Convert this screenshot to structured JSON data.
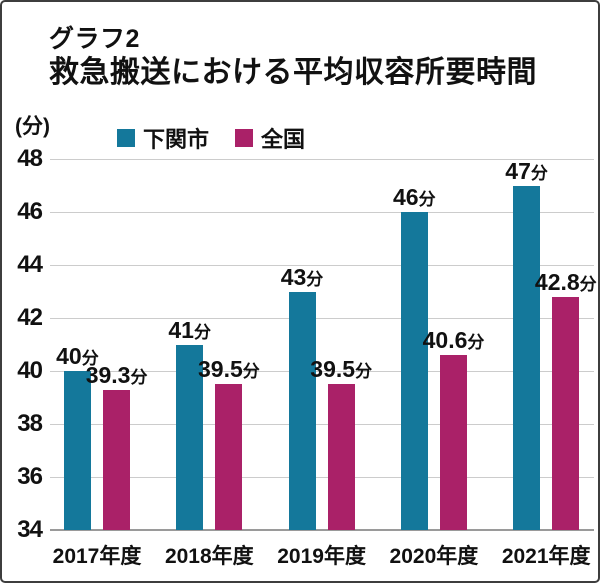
{
  "title": {
    "line1": "グラフ2",
    "line2": "救急搬送における平均収容所要時間"
  },
  "unit_label": "(分)",
  "legend": [
    {
      "label": "下関市",
      "color": "#14789B"
    },
    {
      "label": "全国",
      "color": "#AA2168"
    }
  ],
  "colors": {
    "series1": "#14789B",
    "series2": "#AA2168",
    "gridline": "#cccccc",
    "baseline": "#9a9a9a",
    "text": "#111111"
  },
  "chart_data": {
    "type": "bar",
    "title": "救急搬送における平均収容所要時間",
    "subtitle": "グラフ2",
    "categories": [
      "2017年度",
      "2018年度",
      "2019年度",
      "2020年度",
      "2021年度"
    ],
    "series": [
      {
        "name": "下関市",
        "color": "#14789B",
        "values": [
          40,
          41,
          43,
          46,
          47
        ],
        "value_labels": [
          "40",
          "41",
          "43",
          "46",
          "47"
        ]
      },
      {
        "name": "全国",
        "color": "#AA2168",
        "values": [
          39.3,
          39.5,
          39.5,
          40.6,
          42.8
        ],
        "value_labels": [
          "39.3",
          "39.5",
          "39.5",
          "40.6",
          "42.8"
        ]
      }
    ],
    "value_unit": "分",
    "xlabel": "",
    "ylabel": "(分)",
    "ylim": [
      34,
      48
    ],
    "yticks": [
      34,
      36,
      38,
      40,
      42,
      44,
      46,
      48
    ],
    "grid": true,
    "legend_position": "top"
  }
}
